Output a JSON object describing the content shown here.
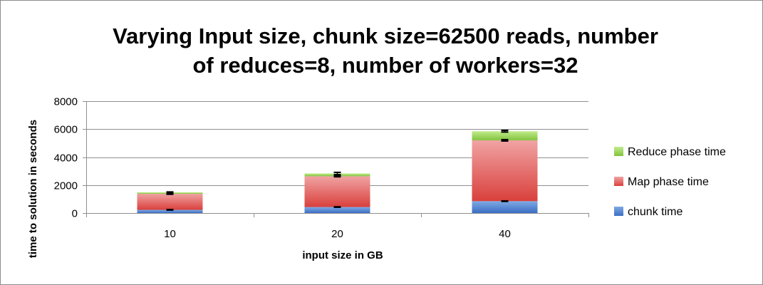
{
  "chart_data": {
    "type": "bar",
    "stacked": true,
    "title_lines": [
      "Varying Input size, chunk size=62500 reads, number",
      "of reduces=8, number of workers=32"
    ],
    "xlabel": "input size in GB",
    "ylabel": "time to solution in seconds",
    "categories": [
      "10",
      "20",
      "40"
    ],
    "ylim": [
      0,
      8000
    ],
    "yticks": [
      0,
      2000,
      4000,
      6000,
      8000
    ],
    "grid": true,
    "legend_position": "right",
    "series": [
      {
        "name": "chunk time",
        "values": [
          230,
          430,
          850
        ],
        "error": [
          20,
          20,
          20
        ],
        "color": "#4f81bd"
      },
      {
        "name": "Map phase time",
        "values": [
          1150,
          2200,
          4350
        ],
        "error": [
          40,
          40,
          50
        ],
        "color": "#e06666"
      },
      {
        "name": "Reduce phase time",
        "values": [
          100,
          200,
          650
        ],
        "error": [
          30,
          80,
          60
        ],
        "color": "#9bd45a"
      }
    ]
  }
}
